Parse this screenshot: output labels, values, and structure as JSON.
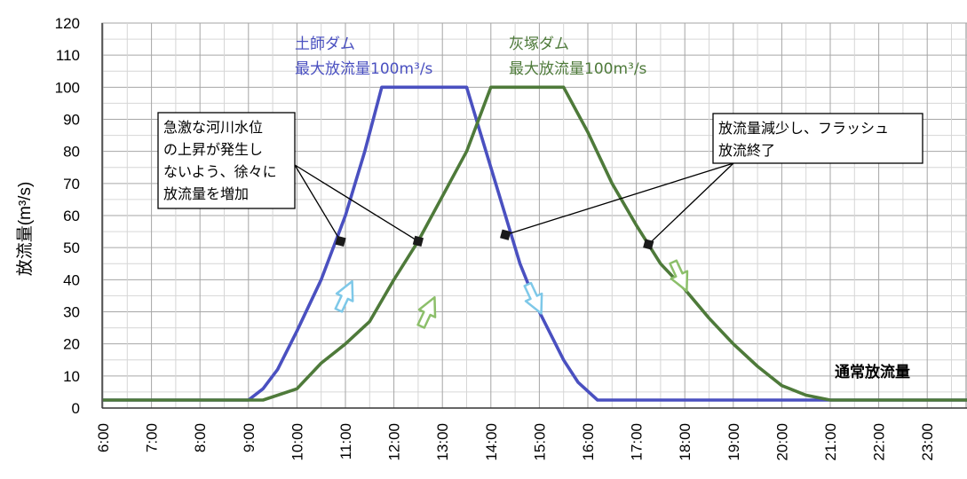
{
  "chart_data": {
    "type": "line",
    "ylabel": "放流量(m³/s)",
    "ylim": [
      0,
      120
    ],
    "yticks": [
      0,
      10,
      20,
      30,
      40,
      50,
      60,
      70,
      80,
      90,
      100,
      110,
      120
    ],
    "xlim": [
      6,
      24
    ],
    "xticks": [
      "6:00",
      "7:00",
      "8:00",
      "9:00",
      "10:00",
      "11:00",
      "12:00",
      "13:00",
      "14:00",
      "15:00",
      "16:00",
      "17:00",
      "18:00",
      "19:00",
      "20:00",
      "21:00",
      "22:00",
      "23:00"
    ],
    "grid": true,
    "series": [
      {
        "name": "土師ダム",
        "label_lines": [
          "土師ダム",
          "最大放流量100m³/s"
        ],
        "color": "#4a50c0",
        "points": [
          [
            6.0,
            2.5
          ],
          [
            9.0,
            2.5
          ],
          [
            9.3,
            6
          ],
          [
            9.6,
            12
          ],
          [
            10.0,
            24
          ],
          [
            10.5,
            40
          ],
          [
            11.0,
            60
          ],
          [
            11.4,
            80
          ],
          [
            11.75,
            100
          ],
          [
            13.5,
            100
          ],
          [
            13.9,
            80
          ],
          [
            14.3,
            60
          ],
          [
            14.6,
            45
          ],
          [
            15.0,
            30
          ],
          [
            15.5,
            15
          ],
          [
            15.8,
            8
          ],
          [
            16.2,
            2.5
          ],
          [
            24.0,
            2.5
          ]
        ]
      },
      {
        "name": "灰塚ダム",
        "label_lines": [
          "灰塚ダム",
          "最大放流量100m³/s"
        ],
        "color": "#4e7a3a",
        "points": [
          [
            6.0,
            2.5
          ],
          [
            9.3,
            2.5
          ],
          [
            10.0,
            6
          ],
          [
            10.5,
            14
          ],
          [
            11.0,
            20
          ],
          [
            11.5,
            27
          ],
          [
            12.0,
            40
          ],
          [
            12.5,
            52
          ],
          [
            13.0,
            66
          ],
          [
            13.5,
            80
          ],
          [
            14.0,
            100
          ],
          [
            15.5,
            100
          ],
          [
            16.0,
            86
          ],
          [
            16.5,
            70
          ],
          [
            17.0,
            57
          ],
          [
            17.5,
            45
          ],
          [
            18.0,
            37
          ],
          [
            18.5,
            28
          ],
          [
            19.0,
            20
          ],
          [
            19.5,
            13
          ],
          [
            20.0,
            7
          ],
          [
            20.5,
            4
          ],
          [
            21.0,
            2.5
          ],
          [
            24.0,
            2.5
          ]
        ]
      }
    ],
    "annotations": [
      {
        "id": "increase",
        "lines": [
          "急激な河川水位",
          "の上昇が発生し",
          "ないよう、徐々に",
          "放流量を増加"
        ]
      },
      {
        "id": "decrease",
        "lines": [
          "放流量減少し、フラッシュ",
          "放流終了"
        ]
      },
      {
        "id": "normal",
        "text": "通常放流量",
        "color": "#e02020"
      }
    ],
    "markers": [
      {
        "series": "土師ダム",
        "x": 10.9,
        "y": 52
      },
      {
        "series": "灰塚ダム",
        "x": 12.5,
        "y": 52
      },
      {
        "series": "土師ダム",
        "x": 14.3,
        "y": 54
      },
      {
        "series": "灰塚ダム",
        "x": 17.25,
        "y": 51
      }
    ],
    "arrows": [
      {
        "x": 11.0,
        "y": 35,
        "dir": "up",
        "color": "#7ec8e8"
      },
      {
        "x": 12.7,
        "y": 30,
        "dir": "up",
        "color": "#8cbf6a"
      },
      {
        "x": 14.9,
        "y": 34,
        "dir": "down",
        "color": "#7ec8e8"
      },
      {
        "x": 17.9,
        "y": 41,
        "dir": "down",
        "color": "#8cbf6a"
      }
    ]
  }
}
